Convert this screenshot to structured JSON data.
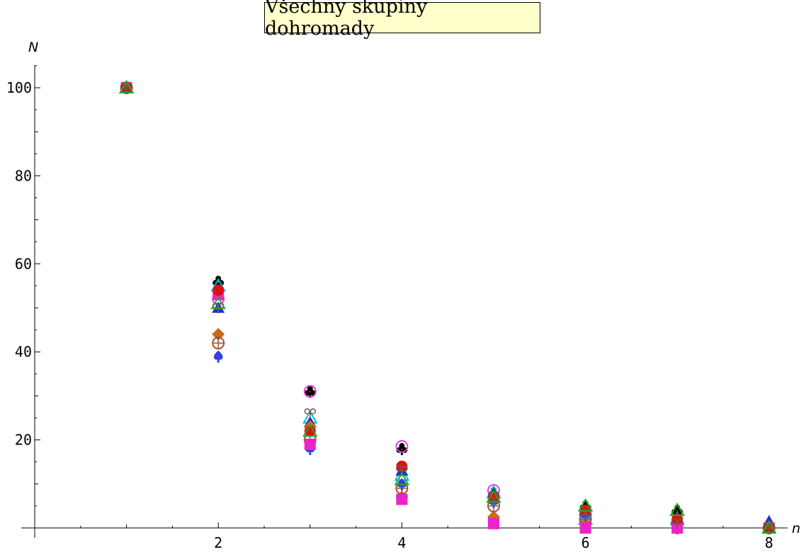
{
  "chart_data": {
    "type": "scatter",
    "title": "Všechny skupiny dohromady",
    "xlabel": "n",
    "ylabel": "N",
    "xlim": [
      0,
      8
    ],
    "ylim": [
      0,
      105
    ],
    "x_ticks": [
      2,
      4,
      6,
      8
    ],
    "y_ticks": [
      20,
      40,
      60,
      80,
      100
    ],
    "grid": false,
    "series": [
      {
        "marker": "club",
        "color": "#000000",
        "x": [
          1,
          2,
          3,
          4,
          5,
          6,
          7,
          8
        ],
        "y": [
          100,
          56,
          31,
          18,
          8,
          5,
          4,
          0
        ]
      },
      {
        "marker": "circle-open",
        "color": "#e040e0",
        "x": [
          1,
          2,
          3,
          4,
          5,
          6,
          7,
          8
        ],
        "y": [
          100,
          52,
          31,
          18.5,
          8.5,
          3,
          1,
          0
        ]
      },
      {
        "marker": "triangle-open",
        "color": "#00bcd4",
        "x": [
          1,
          2,
          3,
          4,
          5,
          6,
          7,
          8
        ],
        "y": [
          100,
          55,
          25,
          12,
          8,
          2,
          2,
          0
        ]
      },
      {
        "marker": "triangle-filled",
        "color": "#2233cc",
        "x": [
          1,
          2,
          3,
          4,
          5,
          6,
          7,
          8
        ],
        "y": [
          100,
          50,
          24,
          13,
          7,
          4,
          1,
          1.5
        ]
      },
      {
        "marker": "diamond",
        "color": "#cc6a1a",
        "x": [
          1,
          2,
          3,
          4,
          5,
          6,
          7,
          8
        ],
        "y": [
          100,
          44,
          23,
          7,
          2.5,
          1,
          0,
          0
        ]
      },
      {
        "marker": "circle-cross",
        "color": "#a0522d",
        "x": [
          1,
          2,
          3,
          4,
          5,
          6,
          7,
          8
        ],
        "y": [
          100,
          42,
          20,
          9,
          5,
          2,
          1,
          0
        ]
      },
      {
        "marker": "spade",
        "color": "#3344dd",
        "x": [
          1,
          2,
          3,
          4,
          5,
          6,
          7,
          8
        ],
        "y": [
          100,
          39,
          18,
          10,
          6,
          3,
          0,
          0
        ]
      },
      {
        "marker": "square",
        "color": "#ee22cc",
        "x": [
          1,
          2,
          3,
          4,
          5,
          6,
          7,
          8
        ],
        "y": [
          100,
          53,
          19,
          6.5,
          1,
          0,
          0,
          0
        ]
      },
      {
        "marker": "circle",
        "color": "#dd1111",
        "x": [
          1,
          2,
          3,
          4,
          5,
          6,
          7,
          8
        ],
        "y": [
          100,
          54,
          22,
          14,
          7,
          4,
          2,
          0
        ]
      },
      {
        "marker": "bow",
        "color": "#6a5d52",
        "x": [
          1,
          2,
          3,
          4,
          5,
          6,
          7,
          8
        ],
        "y": [
          100,
          50,
          26,
          13,
          6,
          3,
          1,
          0
        ]
      },
      {
        "marker": "triangle-open",
        "color": "#22aa22",
        "x": [
          1,
          2,
          3,
          4,
          5,
          6,
          7,
          8
        ],
        "y": [
          100,
          51,
          22,
          11,
          7,
          5,
          4,
          0
        ]
      }
    ]
  }
}
